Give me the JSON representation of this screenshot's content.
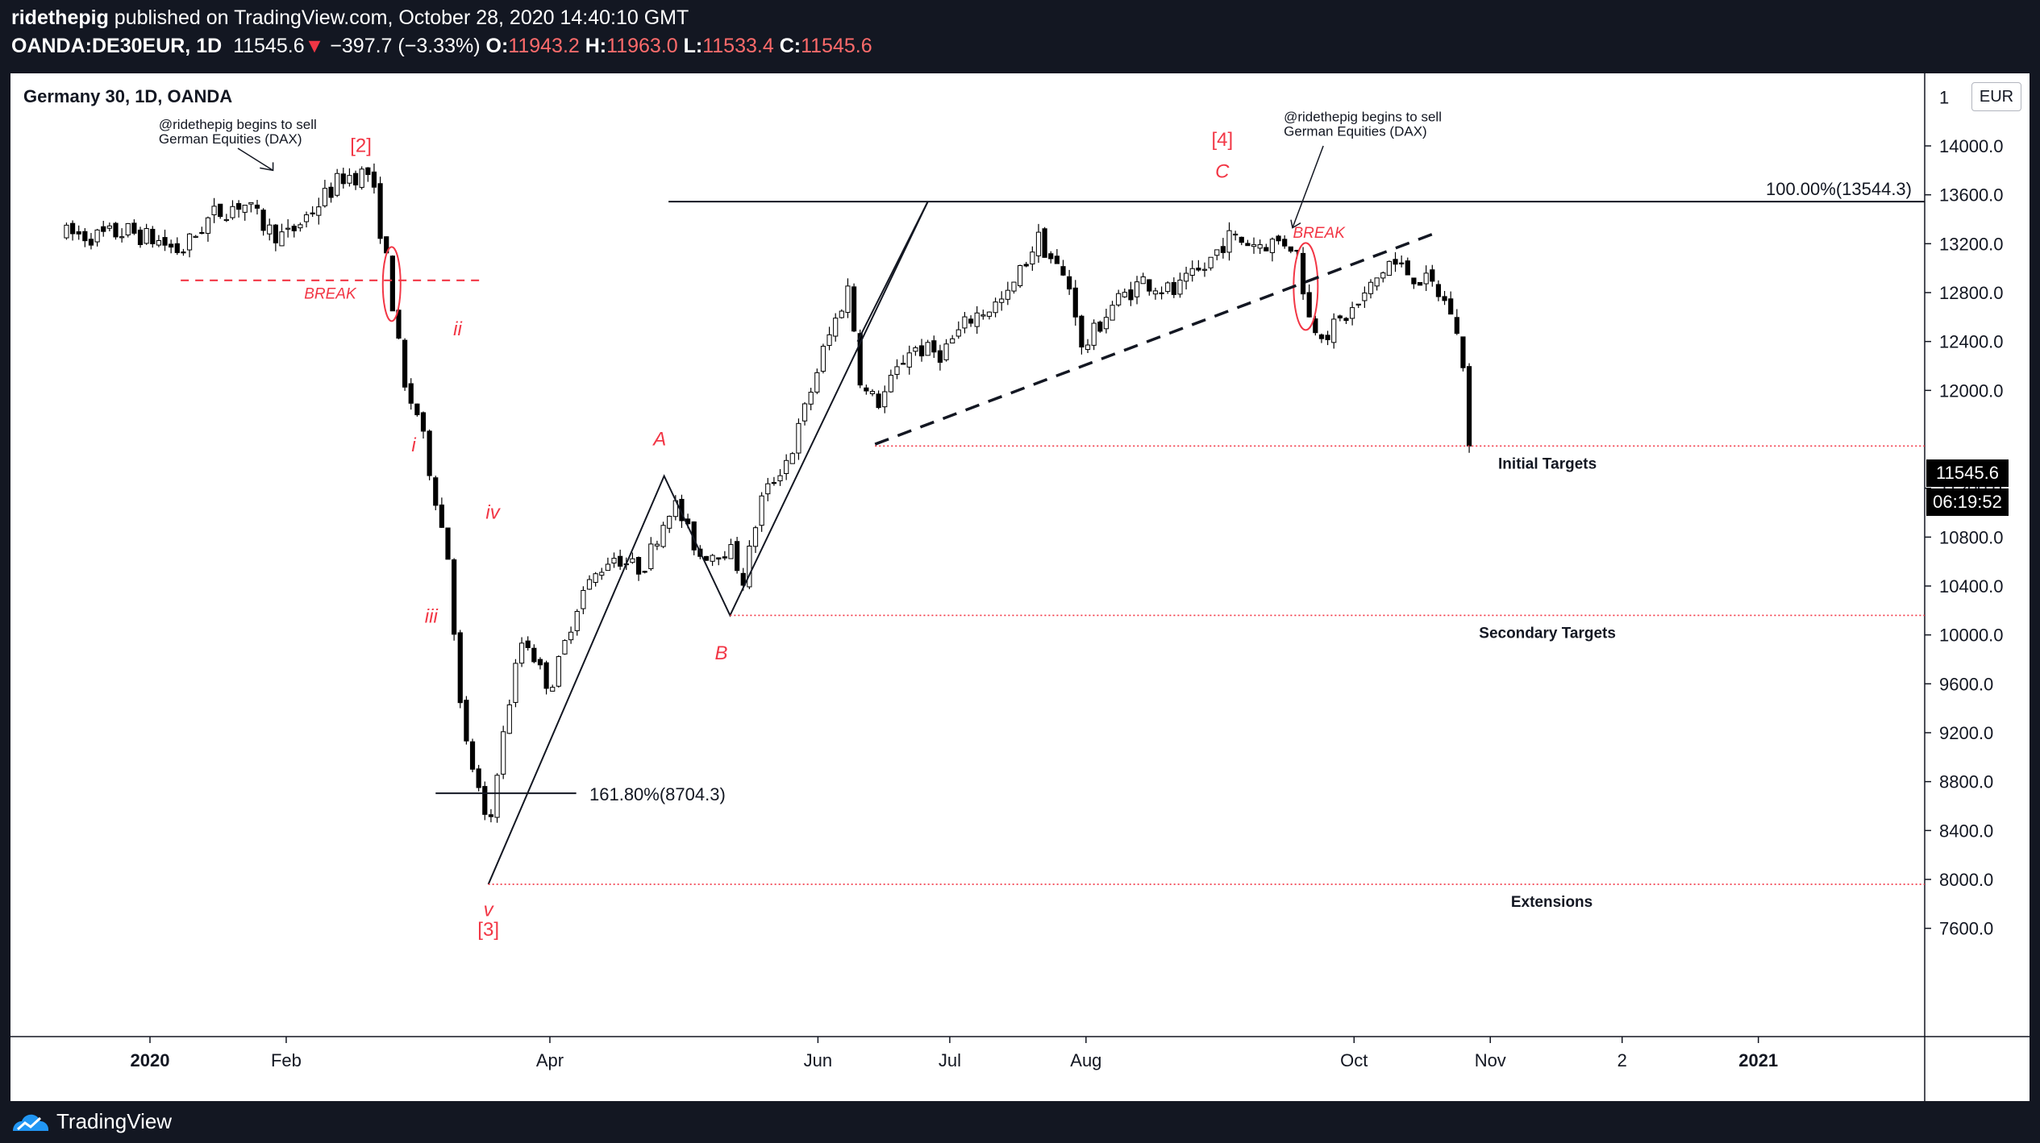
{
  "header": {
    "author": "ridethepig",
    "published_text": "published on TradingView.com, October 28, 2020 14:40:10 GMT",
    "symbol": "OANDA:DE30EUR, 1D",
    "last": "11545.6",
    "change": "−397.7 (−3.33%)",
    "open_label": "O:",
    "open": "11943.2",
    "high_label": "H:",
    "high": "11963.0",
    "low_label": "L:",
    "low": "11533.4",
    "close_label": "C:",
    "close": "11545.6"
  },
  "chart_title": "Germany 30, 1D, OANDA",
  "currency_button": "EUR",
  "current_price": "11545.6",
  "countdown": "06:19:52",
  "footer": {
    "brand": "TradingView"
  },
  "colors": {
    "background": "#131722",
    "panel": "#ffffff",
    "up": "#ffffff",
    "down": "#000000",
    "annotation_red": "#f23645"
  },
  "chart_data": {
    "type": "candlestick",
    "title": "Germany 30, 1D, OANDA",
    "y_ticks": [
      "7600.0",
      "8000.0",
      "8400.0",
      "8800.0",
      "9200.0",
      "9600.0",
      "10000.0",
      "10400.0",
      "10800.0",
      "11200.0",
      "12000.0",
      "12400.0",
      "12800.0",
      "13200.0",
      "13600.0",
      "14000.0"
    ],
    "y_top_partial": "1",
    "ylim": [
      7400,
      14500
    ],
    "x_ticks": [
      {
        "label": "2020",
        "date": "2020-01-01",
        "bold": true
      },
      {
        "label": "Feb",
        "date": "2020-02-01"
      },
      {
        "label": "Apr",
        "date": "2020-04-01"
      },
      {
        "label": "Jun",
        "date": "2020-06-01"
      },
      {
        "label": "Jul",
        "date": "2020-07-01"
      },
      {
        "label": "Aug",
        "date": "2020-08-01"
      },
      {
        "label": "Oct",
        "date": "2020-10-01"
      },
      {
        "label": "Nov",
        "date": "2020-11-01"
      },
      {
        "label": "2",
        "date": "2020-12-01"
      },
      {
        "label": "2021",
        "date": "2021-01-01",
        "bold": true
      }
    ],
    "price_path": [
      [
        "2019-12-13",
        13280
      ],
      [
        "2019-12-20",
        13260
      ],
      [
        "2019-12-27",
        13300
      ],
      [
        "2020-01-03",
        13220
      ],
      [
        "2020-01-08",
        13130
      ],
      [
        "2020-01-15",
        13430
      ],
      [
        "2020-01-22",
        13540
      ],
      [
        "2020-01-28",
        13310
      ],
      [
        "2020-02-01",
        13250
      ],
      [
        "2020-02-07",
        13480
      ],
      [
        "2020-02-14",
        13750
      ],
      [
        "2020-02-20",
        13780
      ],
      [
        "2020-02-24",
        13020
      ],
      [
        "2020-02-28",
        12000
      ],
      [
        "2020-03-02",
        11800
      ],
      [
        "2020-03-09",
        10610
      ],
      [
        "2020-03-12",
        9230
      ],
      [
        "2020-03-16",
        8700
      ],
      [
        "2020-03-18",
        8350
      ],
      [
        "2020-03-20",
        8900
      ],
      [
        "2020-03-24",
        9700
      ],
      [
        "2020-03-26",
        10000
      ],
      [
        "2020-04-01",
        9550
      ],
      [
        "2020-04-08",
        10330
      ],
      [
        "2020-04-15",
        10650
      ],
      [
        "2020-04-22",
        10530
      ],
      [
        "2020-04-29",
        11100
      ],
      [
        "2020-05-05",
        10650
      ],
      [
        "2020-05-12",
        10700
      ],
      [
        "2020-05-15",
        10450
      ],
      [
        "2020-05-19",
        11100
      ],
      [
        "2020-05-26",
        11500
      ],
      [
        "2020-06-02",
        12300
      ],
      [
        "2020-06-08",
        12850
      ],
      [
        "2020-06-11",
        12000
      ],
      [
        "2020-06-15",
        11900
      ],
      [
        "2020-06-22",
        12350
      ],
      [
        "2020-06-29",
        12300
      ],
      [
        "2020-07-06",
        12600
      ],
      [
        "2020-07-14",
        12750
      ],
      [
        "2020-07-21",
        13250
      ],
      [
        "2020-07-29",
        12800
      ],
      [
        "2020-07-31",
        12320
      ],
      [
        "2020-08-07",
        12700
      ],
      [
        "2020-08-14",
        12900
      ],
      [
        "2020-08-21",
        12800
      ],
      [
        "2020-08-28",
        13000
      ],
      [
        "2020-09-02",
        13250
      ],
      [
        "2020-09-09",
        13200
      ],
      [
        "2020-09-16",
        13220
      ],
      [
        "2020-09-18",
        13120
      ],
      [
        "2020-09-21",
        12550
      ],
      [
        "2020-09-25",
        12470
      ],
      [
        "2020-10-02",
        12700
      ],
      [
        "2020-10-09",
        13050
      ],
      [
        "2020-10-14",
        12950
      ],
      [
        "2020-10-19",
        12850
      ],
      [
        "2020-10-23",
        12650
      ],
      [
        "2020-10-26",
        12200
      ],
      [
        "2020-10-28",
        11545.6
      ]
    ],
    "annotations": [
      {
        "text": "[2]",
        "date": "2020-02-18",
        "price": 13950,
        "color": "red"
      },
      {
        "text": "[4]",
        "date": "2020-09-01",
        "price": 14000,
        "color": "red"
      },
      {
        "text": "C",
        "date": "2020-09-01",
        "price": 13740,
        "color": "red",
        "italic": true
      },
      {
        "text": "[3]",
        "date": "2020-03-18",
        "price": 7540,
        "color": "red"
      },
      {
        "text": "v",
        "date": "2020-03-18",
        "price": 7700,
        "color": "red",
        "italic": true
      },
      {
        "text": "i",
        "date": "2020-03-01",
        "price": 11500,
        "color": "red",
        "italic": true
      },
      {
        "text": "ii",
        "date": "2020-03-11",
        "price": 12450,
        "color": "red",
        "italic": true
      },
      {
        "text": "iii",
        "date": "2020-03-05",
        "price": 10100,
        "color": "red",
        "italic": true
      },
      {
        "text": "iv",
        "date": "2020-03-19",
        "price": 10950,
        "color": "red",
        "italic": true
      },
      {
        "text": "A",
        "date": "2020-04-26",
        "price": 11550,
        "color": "red",
        "italic": true
      },
      {
        "text": "B",
        "date": "2020-05-10",
        "price": 9800,
        "color": "red",
        "italic": true
      },
      {
        "text": "BREAK",
        "date": "2020-02-11",
        "price": 12750,
        "color": "red",
        "italic": true
      },
      {
        "text": "BREAK",
        "date": "2020-09-23",
        "price": 13250,
        "color": "red",
        "italic": true
      }
    ],
    "notes": [
      {
        "lines": [
          "@ridethepig begins to sell",
          "German Equities (DAX)"
        ],
        "date": "2020-01-03",
        "price": 14140
      },
      {
        "lines": [
          "@ridethepig begins to sell",
          "German Equities (DAX)"
        ],
        "date": "2020-09-15",
        "price": 14200
      }
    ],
    "levels": [
      {
        "label": "100.00%(13544.3)",
        "price": 13544.3
      },
      {
        "label": "161.80%(8704.3)",
        "price": 8704.3
      },
      {
        "label": "Initial Targets",
        "price": 11545
      },
      {
        "label": "Secondary Targets",
        "price": 10160
      },
      {
        "label": "Extensions",
        "price": 7960
      }
    ]
  }
}
